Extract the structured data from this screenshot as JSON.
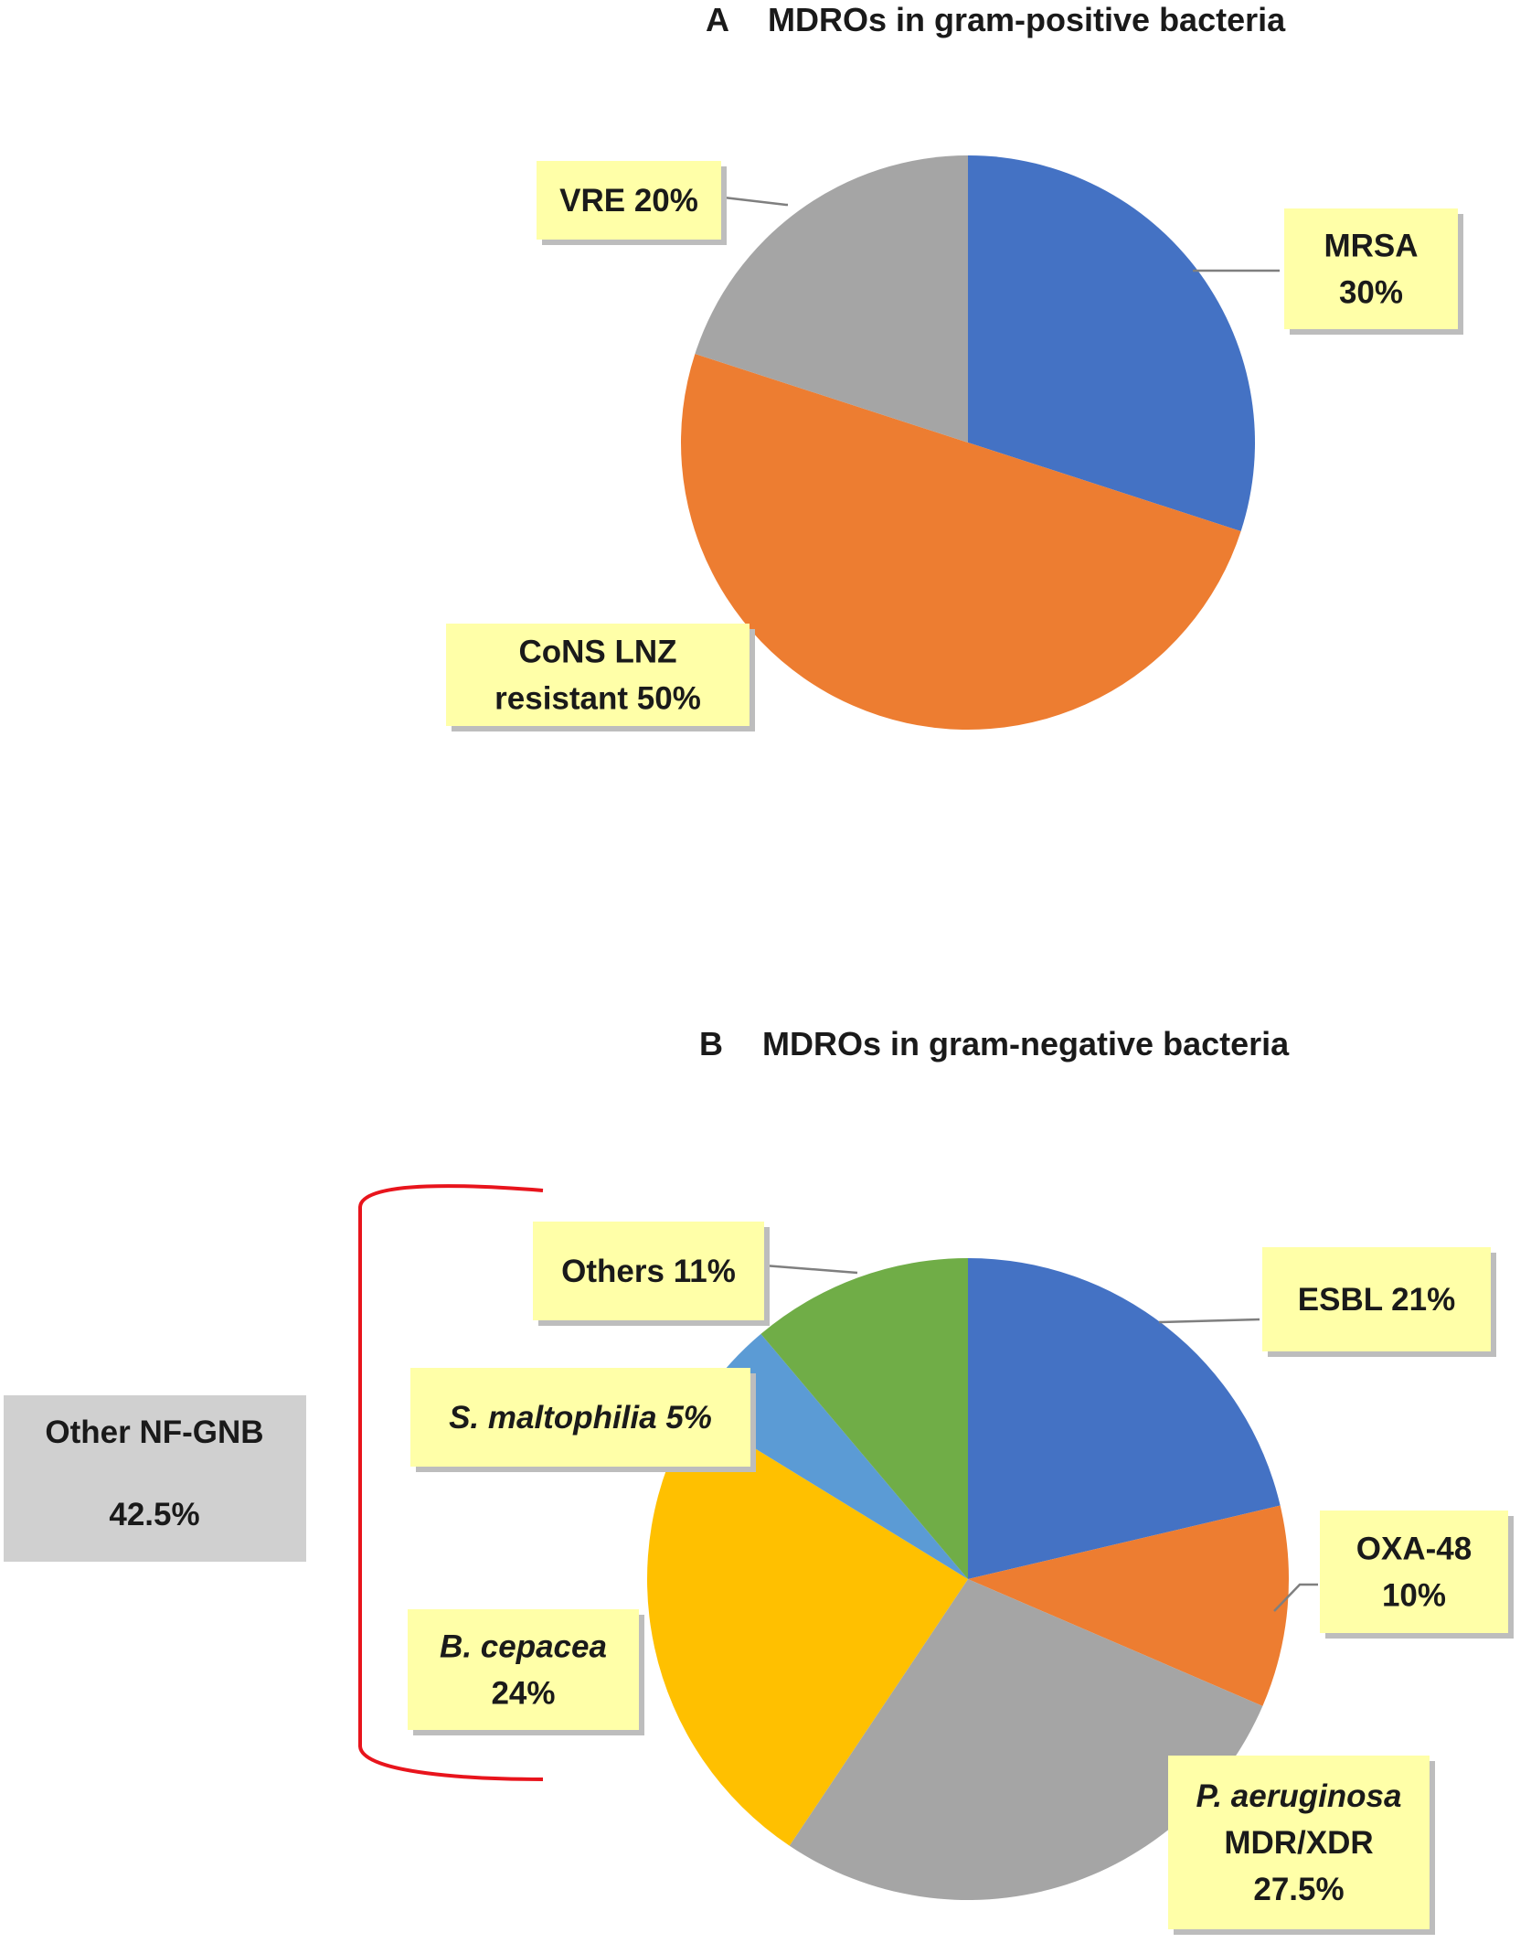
{
  "chart_data": [
    {
      "type": "pie",
      "panel": "A",
      "title": "MDROs in gram-positive bacteria",
      "slices": [
        {
          "label_lines": [
            "MRSA",
            "30%"
          ],
          "value": 30,
          "color": "#4472c4"
        },
        {
          "label_lines": [
            "CoNS LNZ",
            "resistant 50%"
          ],
          "value": 50,
          "color": "#ed7d31"
        },
        {
          "label_lines": [
            "VRE 20%"
          ],
          "value": 20,
          "color": "#a5a5a5"
        }
      ]
    },
    {
      "type": "pie",
      "panel": "B",
      "title": "MDROs in gram-negative bacteria",
      "slices": [
        {
          "label_lines": [
            "ESBL 21%"
          ],
          "value": 21,
          "color": "#4472c4"
        },
        {
          "label_lines": [
            "OXA-48",
            "10%"
          ],
          "value": 10,
          "color": "#ed7d31"
        },
        {
          "label_lines": [
            "P. aeruginosa",
            "MDR/XDR",
            "27.5%"
          ],
          "value": 27.5,
          "color": "#a5a5a5"
        },
        {
          "label_lines": [
            "B. cepacea",
            "24%"
          ],
          "value": 24,
          "color": "#ffc000"
        },
        {
          "label_lines": [
            "S. maltophilia 5%"
          ],
          "value": 5,
          "color": "#5b9bd5"
        },
        {
          "label_lines": [
            "Others 11%"
          ],
          "value": 11,
          "color": "#70ad47"
        }
      ],
      "group_annotation": {
        "label_lines": [
          "Other NF-GNB",
          "42.5%"
        ],
        "bracket_color": "#e8141c"
      }
    }
  ]
}
